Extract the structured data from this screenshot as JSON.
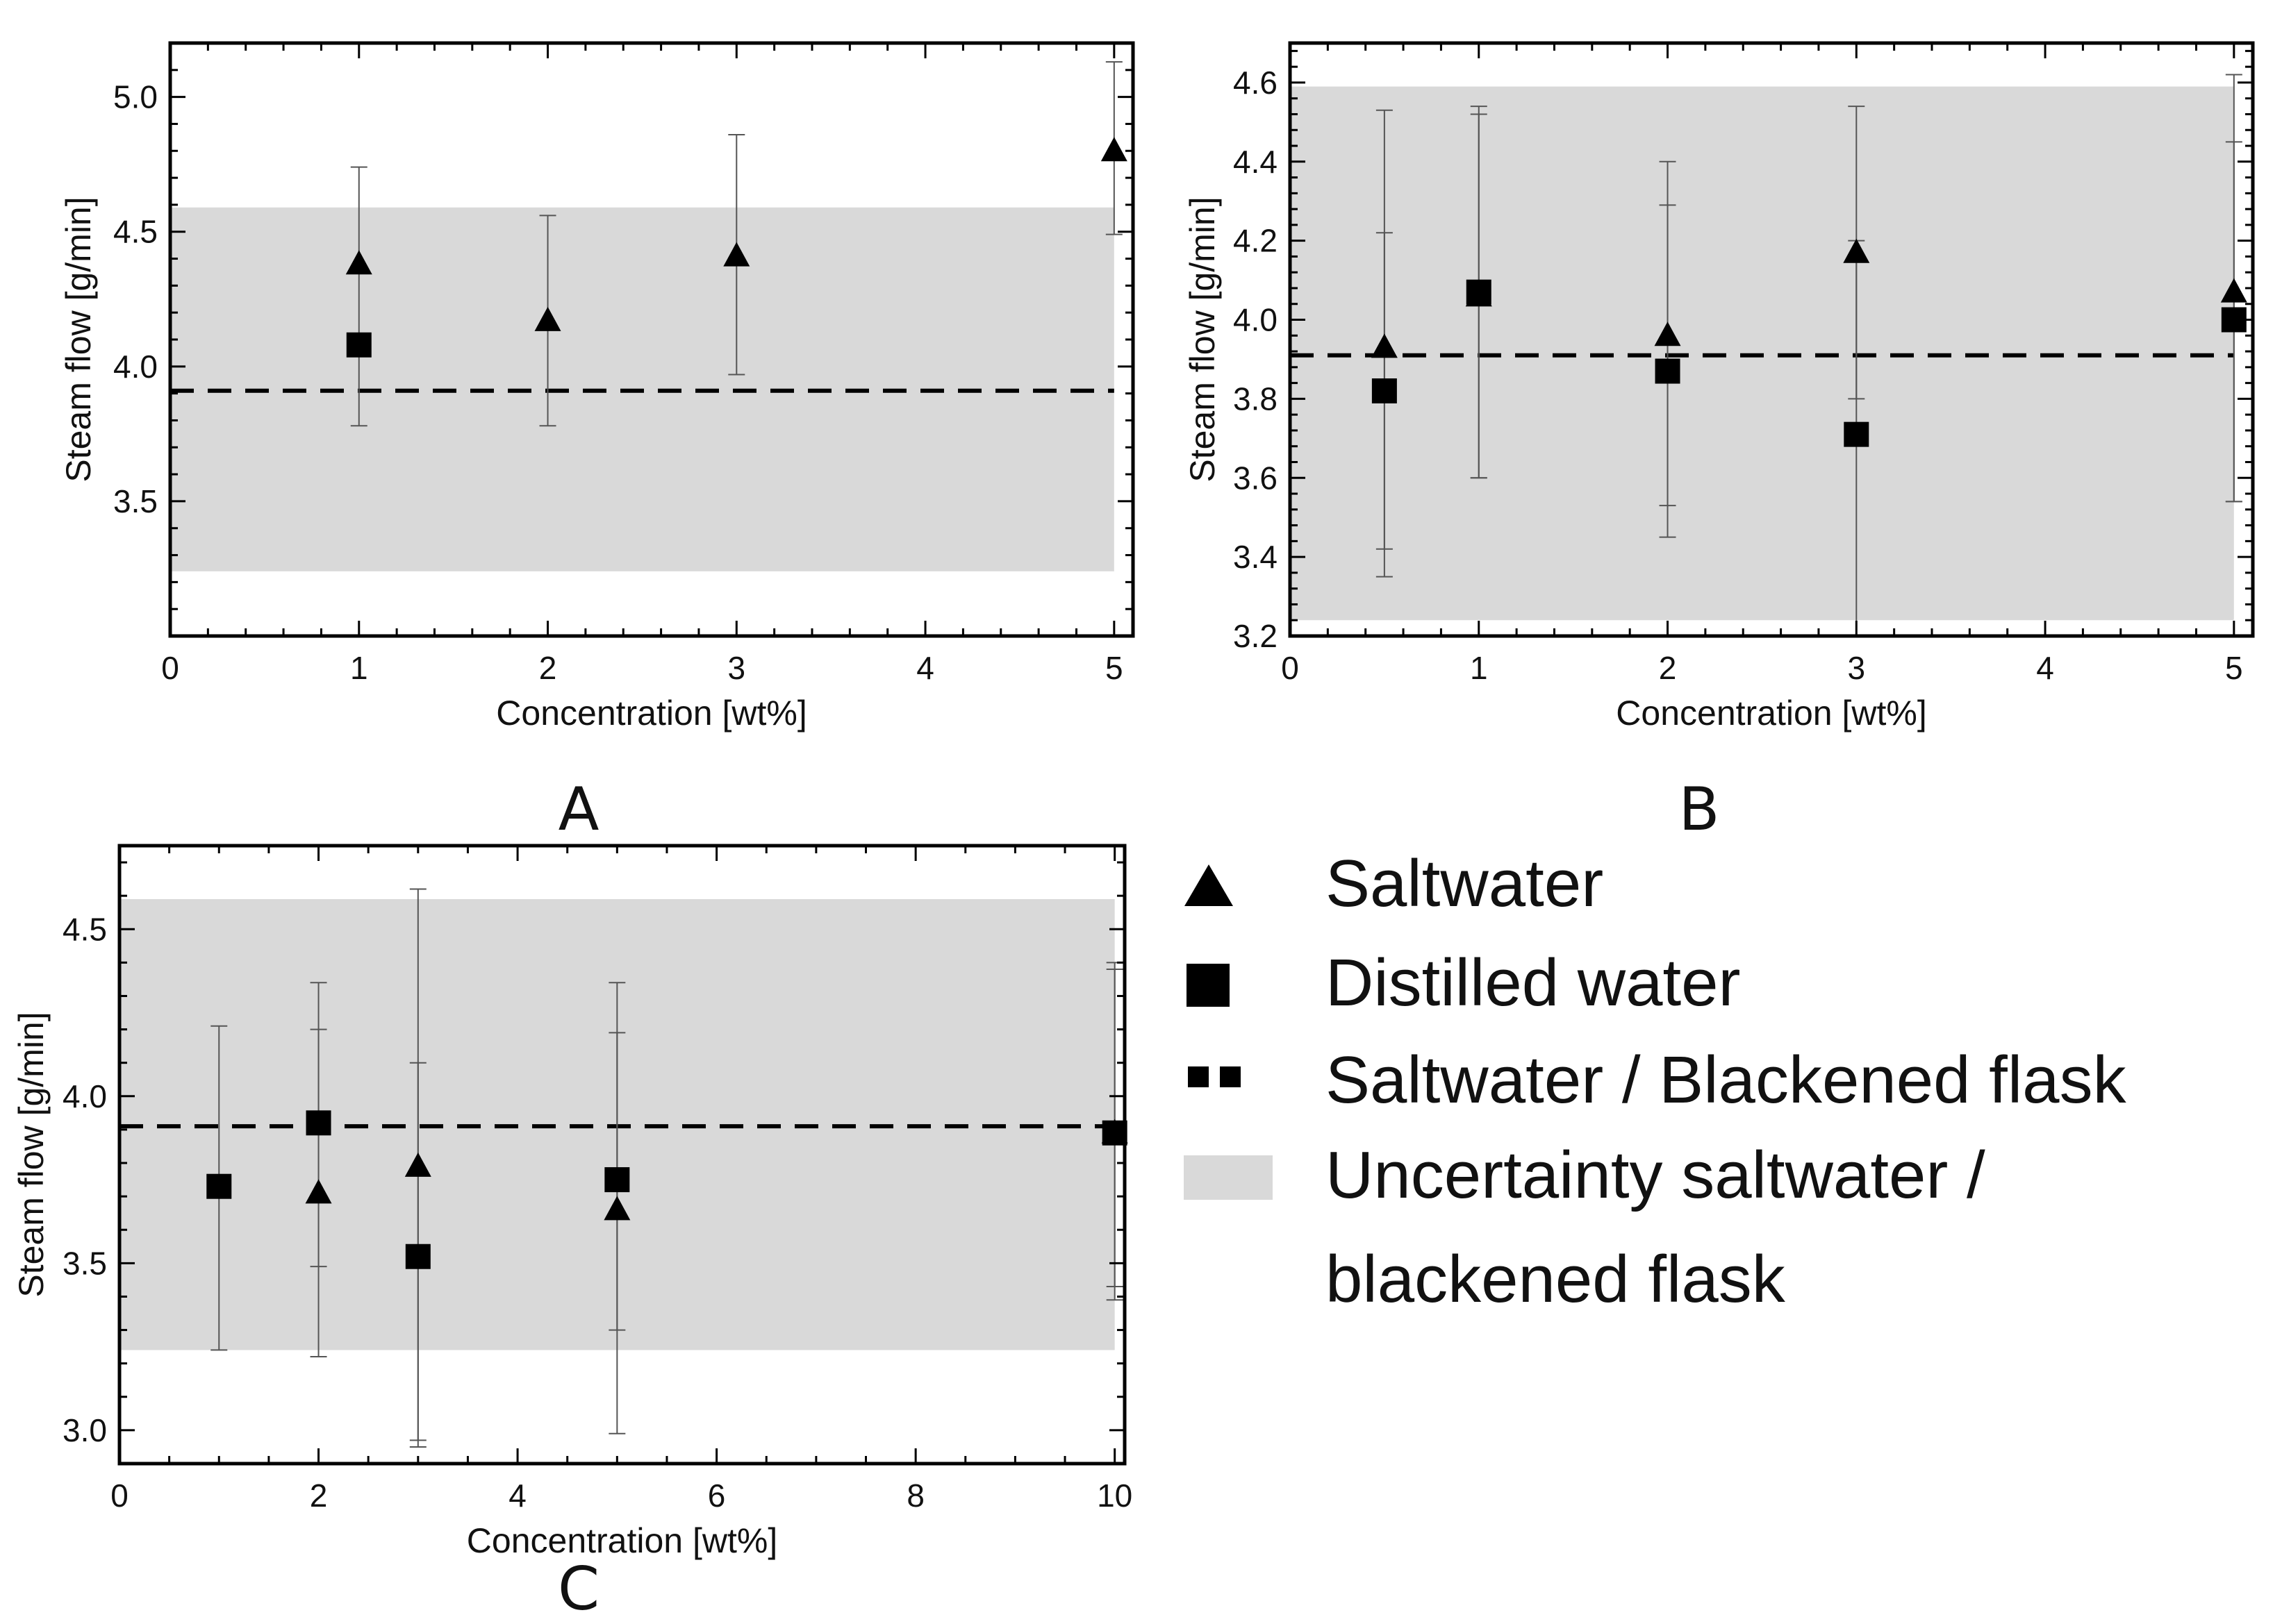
{
  "legend": {
    "items": [
      {
        "key": "saltwater",
        "label": "Saltwater",
        "marker": "triangle-icon"
      },
      {
        "key": "distilled",
        "label": "Distilled water",
        "marker": "square-icon"
      },
      {
        "key": "baseline",
        "label": "Saltwater / Blackened flask",
        "marker": "dashed-line-icon"
      },
      {
        "key": "band",
        "label": "Uncertainty saltwater /",
        "label2": "blackened flask",
        "marker": "grey-band-icon"
      }
    ]
  },
  "colors": {
    "marker": "#000000",
    "band": "#d9d9d9",
    "errorbar": "#555555",
    "axis": "#000000"
  },
  "chart_data": [
    {
      "panel": "A",
      "type": "scatter",
      "xlabel": "Concentration [wt%]",
      "ylabel": "Steam flow [g/min]",
      "xlim": [
        0,
        5.1
      ],
      "ylim": [
        3.0,
        5.2
      ],
      "xticks": [
        0,
        1,
        2,
        3,
        4,
        5
      ],
      "xticklabels": [
        "0",
        "1",
        "2",
        "3",
        "4",
        "5"
      ],
      "yticks": [
        3.5,
        4.0,
        4.5,
        5.0
      ],
      "yticklabels": [
        "3.5",
        "4.0",
        "4.5",
        "5.0"
      ],
      "band": [
        3.24,
        4.59
      ],
      "band_x": [
        0,
        5
      ],
      "baseline": 3.91,
      "series": [
        {
          "name": "Saltwater",
          "marker": "triangle",
          "x": [
            1,
            2,
            3,
            5
          ],
          "y": [
            4.38,
            4.17,
            4.41,
            4.8
          ],
          "err": [
            [
              3.78,
              4.74
            ],
            [
              3.78,
              4.56
            ],
            [
              3.97,
              4.86
            ],
            [
              4.49,
              5.13
            ]
          ]
        },
        {
          "name": "Distilled water",
          "marker": "square",
          "x": [
            1
          ],
          "y": [
            4.08
          ],
          "err": [
            null
          ]
        }
      ]
    },
    {
      "panel": "B",
      "type": "scatter",
      "xlabel": "Concentration [wt%]",
      "ylabel": "Steam flow [g/min]",
      "xlim": [
        0,
        5.1
      ],
      "ylim": [
        3.2,
        4.7
      ],
      "xticks": [
        0,
        1,
        2,
        3,
        4,
        5
      ],
      "xticklabels": [
        "0",
        "1",
        "2",
        "3",
        "4",
        "5"
      ],
      "yticks": [
        3.2,
        3.4,
        3.6,
        3.8,
        4.0,
        4.2,
        4.4,
        4.6
      ],
      "yticklabels": [
        "3.2",
        "3.4",
        "3.6",
        "3.8",
        "4.0",
        "4.2",
        "4.4",
        "4.6"
      ],
      "band": [
        3.24,
        4.59
      ],
      "band_x": [
        0,
        5
      ],
      "baseline": 3.91,
      "series": [
        {
          "name": "Saltwater",
          "marker": "triangle",
          "x": [
            0.5,
            1,
            2,
            3,
            5
          ],
          "y": [
            3.93,
            4.06,
            3.96,
            4.17,
            4.07
          ],
          "err": [
            [
              3.42,
              4.53
            ],
            [
              3.6,
              4.52
            ],
            [
              3.53,
              4.4
            ],
            [
              3.8,
              4.54
            ],
            [
              3.54,
              4.45
            ]
          ]
        },
        {
          "name": "Distilled water",
          "marker": "square",
          "x": [
            0.5,
            1,
            2,
            3,
            5
          ],
          "y": [
            3.82,
            4.07,
            3.87,
            3.71,
            4.0
          ],
          "err": [
            [
              3.35,
              4.22
            ],
            [
              3.6,
              4.54
            ],
            [
              3.45,
              4.29
            ],
            [
              3.2,
              4.2
            ],
            [
              3.54,
              4.62
            ]
          ]
        }
      ]
    },
    {
      "panel": "C",
      "type": "scatter",
      "xlabel": "Concentration [wt%]",
      "ylabel": "Steam flow [g/min]",
      "xlim": [
        0,
        10.1
      ],
      "ylim": [
        2.9,
        4.75
      ],
      "xticks": [
        0,
        2,
        4,
        6,
        8,
        10
      ],
      "xticklabels": [
        "0",
        "2",
        "4",
        "6",
        "8",
        "10"
      ],
      "yticks": [
        3.0,
        3.5,
        4.0,
        4.5
      ],
      "yticklabels": [
        "3.0",
        "3.5",
        "4.0",
        "4.5"
      ],
      "band": [
        3.24,
        4.59
      ],
      "band_x": [
        0,
        10
      ],
      "baseline": 3.91,
      "series": [
        {
          "name": "Saltwater",
          "marker": "triangle",
          "x": [
            2,
            3,
            5,
            10
          ],
          "y": [
            3.71,
            3.79,
            3.66,
            3.89
          ],
          "err": [
            [
              3.22,
              4.2
            ],
            [
              2.97,
              4.62
            ],
            [
              3.3,
              4.34
            ],
            [
              3.43,
              4.4
            ]
          ]
        },
        {
          "name": "Distilled water",
          "marker": "square",
          "x": [
            1,
            2,
            3,
            5,
            10
          ],
          "y": [
            3.73,
            3.92,
            3.52,
            3.75,
            3.89
          ],
          "err": [
            [
              3.24,
              4.21
            ],
            [
              3.49,
              4.34
            ],
            [
              2.95,
              4.1
            ],
            [
              2.99,
              4.19
            ],
            [
              3.39,
              4.38
            ]
          ]
        }
      ]
    }
  ],
  "panel_labels": {
    "a": "A",
    "b": "B",
    "c": "C"
  }
}
